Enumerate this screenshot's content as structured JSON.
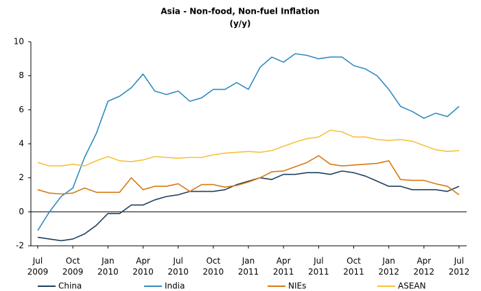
{
  "chart_data": {
    "type": "line",
    "title": "Asia - Non-food, Non-fuel Inflation",
    "subtitle": "(y/y)",
    "categories": [
      "Jul\n2009",
      null,
      null,
      "Oct\n2009",
      null,
      null,
      "Jan\n2010",
      null,
      null,
      "Apr\n2010",
      null,
      null,
      "Jul\n2010",
      null,
      null,
      "Oct\n2010",
      null,
      null,
      "Jan\n2011",
      null,
      null,
      "Apr\n2011",
      null,
      null,
      "Jul\n2011",
      null,
      null,
      "Oct\n2011",
      null,
      null,
      "Jan\n2012",
      null,
      null,
      "Apr\n2012",
      null,
      null,
      "Jul\n2012"
    ],
    "series": [
      {
        "name": "China",
        "color": "#1d3e5c",
        "values": [
          -1.5,
          -1.6,
          -1.7,
          -1.6,
          -1.3,
          -0.8,
          -0.1,
          -0.1,
          0.4,
          0.4,
          0.7,
          0.9,
          1.0,
          1.2,
          1.2,
          1.2,
          1.3,
          1.6,
          1.8,
          2.0,
          1.9,
          2.2,
          2.2,
          2.3,
          2.3,
          2.2,
          2.4,
          2.3,
          2.1,
          1.8,
          1.5,
          1.5,
          1.3,
          1.3,
          1.3,
          1.2,
          1.5
        ]
      },
      {
        "name": "India",
        "color": "#2e8bc0",
        "values": [
          -1.1,
          0,
          0.9,
          1.4,
          3.2,
          4.6,
          6.5,
          6.8,
          7.3,
          8.1,
          7.1,
          6.9,
          7.1,
          6.5,
          6.7,
          7.2,
          7.2,
          7.6,
          7.2,
          8.5,
          9.1,
          8.8,
          9.3,
          9.2,
          9.0,
          9.1,
          9.1,
          8.6,
          8.4,
          8.0,
          7.2,
          6.2,
          5.9,
          5.5,
          5.8,
          5.6,
          6.2
        ]
      },
      {
        "name": "NIEs",
        "color": "#d9770f",
        "values": [
          1.3,
          1.1,
          1.05,
          1.1,
          1.4,
          1.15,
          1.15,
          1.15,
          2.0,
          1.3,
          1.5,
          1.5,
          1.65,
          1.2,
          1.6,
          1.6,
          1.45,
          1.55,
          1.75,
          2.0,
          2.35,
          2.4,
          2.65,
          2.9,
          3.3,
          2.8,
          2.7,
          2.75,
          2.8,
          2.85,
          3.0,
          1.9,
          1.85,
          1.85,
          1.65,
          1.5,
          1.0
        ]
      },
      {
        "name": "ASEAN",
        "color": "#f7c13b",
        "values": [
          2.9,
          2.7,
          2.7,
          2.8,
          2.7,
          3.0,
          3.25,
          3.0,
          2.95,
          3.05,
          3.25,
          3.2,
          3.15,
          3.2,
          3.2,
          3.35,
          3.45,
          3.5,
          3.55,
          3.5,
          3.6,
          3.85,
          4.1,
          4.3,
          4.4,
          4.8,
          4.7,
          4.4,
          4.4,
          4.25,
          4.2,
          4.25,
          4.15,
          3.9,
          3.65,
          3.55,
          3.6
        ]
      }
    ],
    "ylim": [
      -2,
      10
    ],
    "yticks": [
      -2,
      0,
      2,
      4,
      6,
      8,
      10
    ],
    "grid": false,
    "legend": "bottom"
  }
}
